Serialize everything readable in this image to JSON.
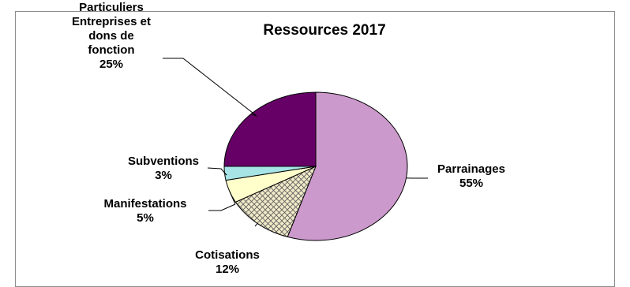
{
  "chart_data": {
    "type": "pie",
    "title": "Ressources 2017",
    "slices": [
      {
        "label": "Parrainages",
        "value": 55,
        "display": "55%",
        "color": "#cc99cc",
        "pattern": "none"
      },
      {
        "label": "Cotisations",
        "value": 12,
        "display": "12%",
        "color": "#f0eac8",
        "pattern": "crosshatch"
      },
      {
        "label": "Manifestations",
        "value": 5,
        "display": "5%",
        "color": "#ffffcc",
        "pattern": "none"
      },
      {
        "label": "Subventions",
        "value": 3,
        "display": "3%",
        "color": "#a6e4e6",
        "pattern": "none"
      },
      {
        "label": "Dons Particuliers Entreprises et dons de fonction",
        "value": 25,
        "display": "25%",
        "color": "#660066",
        "pattern": "none"
      }
    ],
    "start": "12 o'clock",
    "direction": "clockwise",
    "legend": "none",
    "labels": "outside with leader lines"
  }
}
